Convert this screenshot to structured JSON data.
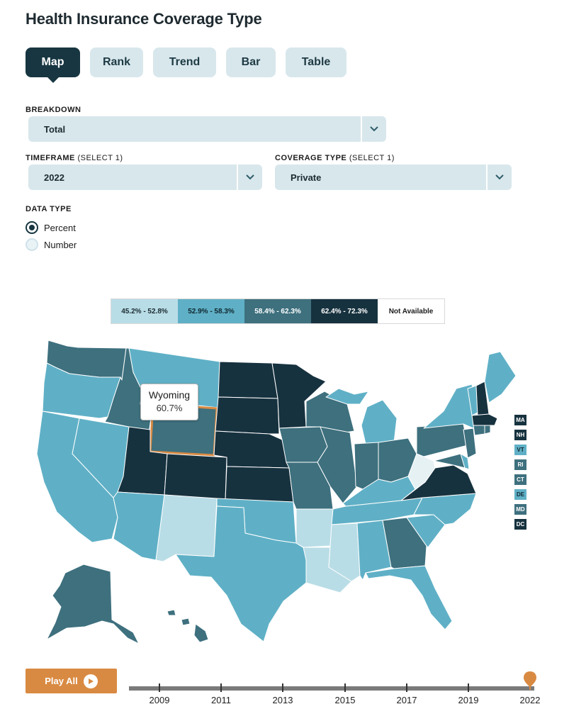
{
  "title": "Health Insurance Coverage Type",
  "tabs": [
    {
      "label": "Map",
      "active": true
    },
    {
      "label": "Rank"
    },
    {
      "label": "Trend"
    },
    {
      "label": "Bar"
    },
    {
      "label": "Table"
    }
  ],
  "filters": {
    "breakdown_label": "BREAKDOWN",
    "breakdown_value": "Total",
    "timeframe_label": "TIMEFRAME",
    "timeframe_sub": "(SELECT 1)",
    "timeframe_value": "2022",
    "coverage_label": "COVERAGE TYPE",
    "coverage_sub": "(SELECT 1)",
    "coverage_value": "Private",
    "datatype_label": "DATA TYPE",
    "datatype_options": [
      "Percent",
      "Number"
    ],
    "datatype_selected": "Percent"
  },
  "legend": [
    {
      "label": "45.2% - 52.8%",
      "color": "#b9dde6"
    },
    {
      "label": "52.9% - 58.3%",
      "color": "#5fb0c6"
    },
    {
      "label": "58.4% - 62.3%",
      "color": "#3e707e"
    },
    {
      "label": "62.4% - 72.3%",
      "color": "#17323f"
    },
    {
      "label": "Not Available",
      "color": "#ffffff"
    }
  ],
  "small_states": [
    {
      "abbr": "MA",
      "color": "#17323f"
    },
    {
      "abbr": "NH",
      "color": "#17323f"
    },
    {
      "abbr": "VT",
      "color": "#5fb0c6"
    },
    {
      "abbr": "RI",
      "color": "#3e707e"
    },
    {
      "abbr": "CT",
      "color": "#3e707e"
    },
    {
      "abbr": "DE",
      "color": "#5fb0c6"
    },
    {
      "abbr": "MD",
      "color": "#3e707e"
    },
    {
      "abbr": "DC",
      "color": "#17323f"
    }
  ],
  "tooltip": {
    "state": "Wyoming",
    "value": "60.7%"
  },
  "timeline": {
    "play_label": "Play All",
    "years": [
      "2009",
      "2011",
      "2013",
      "2015",
      "2017",
      "2019",
      "2022"
    ],
    "selected": "2022"
  }
}
